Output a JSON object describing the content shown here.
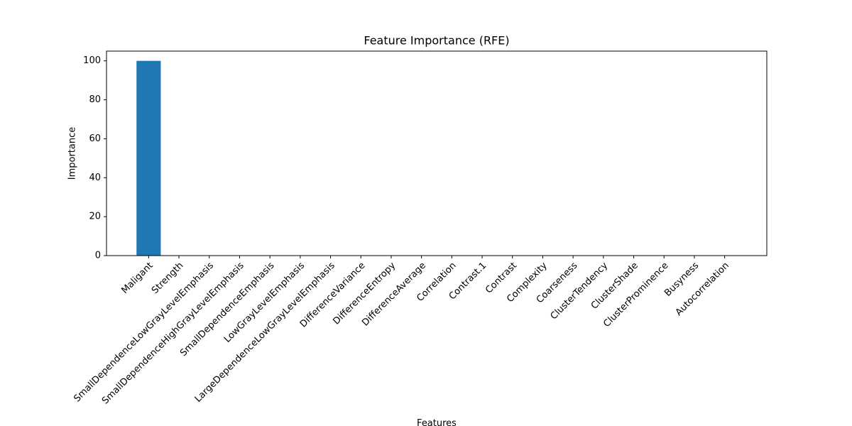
{
  "chart_data": {
    "type": "bar",
    "title": "Feature Importance (RFE)",
    "x_label": "Features",
    "y_label": "Importance",
    "categories": [
      "Maligant",
      "Strength",
      "SmallDependenceLowGrayLevelEmphasis",
      "SmallDependenceHighGrayLevelEmphasis",
      "SmallDependenceEmphasis",
      "LowGrayLevelEmphasis",
      "LargeDependenceLowGrayLevelEmphasis",
      "DifferenceVariance",
      "DifferenceEntropy",
      "DifferenceAverage",
      "Correlation",
      "Contrast.1",
      "Contrast",
      "Complexity",
      "Coarseness",
      "ClusterTendency",
      "ClusterShade",
      "ClusterProminence",
      "Busyness",
      "Autocorrelation"
    ],
    "values": [
      100,
      0,
      0,
      0,
      0,
      0,
      0,
      0,
      0,
      0,
      0,
      0,
      0,
      0,
      0,
      0,
      0,
      0,
      0,
      0
    ],
    "color": "#1f77b4",
    "ylim": [
      0,
      105
    ],
    "yticks": [
      0,
      20,
      40,
      60,
      80,
      100
    ],
    "grid": false
  }
}
